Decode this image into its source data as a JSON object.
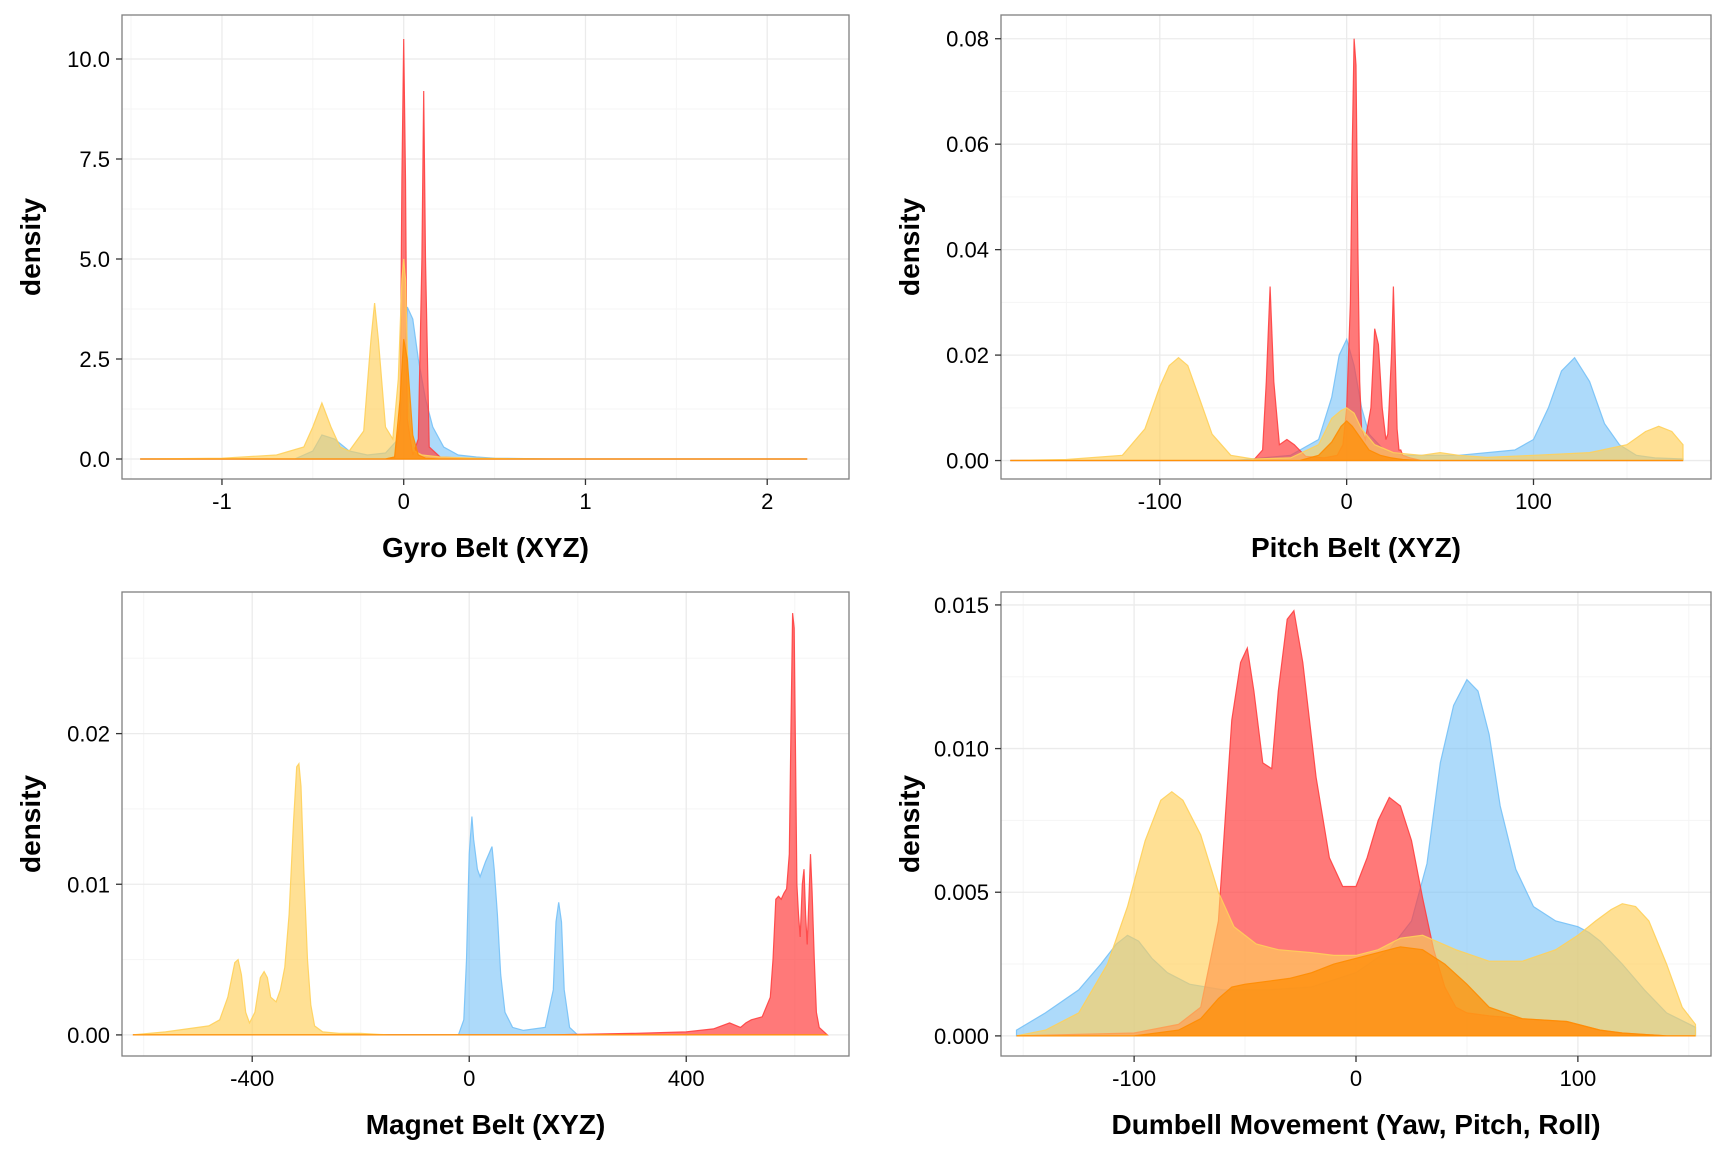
{
  "figure": {
    "colors": {
      "blue": "#76c1f7",
      "red": "#ff4040",
      "yellow": "#ffd05a",
      "orange": "#ff8c00",
      "grid": "#ebebeb",
      "border": "#7f7f7f"
    }
  },
  "chart_data": [
    {
      "type": "area",
      "xlabel": "Gyro Belt (XYZ)",
      "ylabel": "density",
      "xlim": [
        -1.55,
        2.45
      ],
      "ylim": [
        -0.5,
        11.1
      ],
      "xticks": [
        -1,
        0,
        1,
        2
      ],
      "xtick_labels": [
        "-1",
        "0",
        "1",
        "2"
      ],
      "yticks": [
        0,
        2.5,
        5,
        7.5,
        10
      ],
      "ytick_labels": [
        "0.0",
        "2.5",
        "5.0",
        "7.5",
        "10.0"
      ],
      "grid": true,
      "series": [
        {
          "color": "#76c1f7",
          "x": [
            -1.45,
            -0.6,
            -0.5,
            -0.45,
            -0.38,
            -0.3,
            -0.2,
            -0.1,
            -0.03,
            0.0,
            0.02,
            0.05,
            0.08,
            0.12,
            0.16,
            0.22,
            0.3,
            0.4,
            0.5,
            0.8,
            2.22
          ],
          "y": [
            0,
            0,
            0.2,
            0.6,
            0.5,
            0.2,
            0.1,
            0.15,
            0.5,
            2.0,
            3.8,
            3.5,
            2.5,
            1.5,
            0.8,
            0.3,
            0.1,
            0.05,
            0.02,
            0,
            0
          ]
        },
        {
          "color": "#ff4040",
          "x": [
            -1.45,
            -0.1,
            -0.05,
            -0.02,
            -0.01,
            0.0,
            0.01,
            0.02,
            0.05,
            0.08,
            0.1,
            0.11,
            0.12,
            0.14,
            0.2,
            0.4,
            2.22
          ],
          "y": [
            0,
            0,
            0.05,
            1.0,
            7.0,
            10.5,
            7.0,
            1.0,
            0.1,
            0.5,
            5.0,
            9.2,
            5.0,
            0.3,
            0.05,
            0,
            0
          ]
        },
        {
          "color": "#ffd05a",
          "x": [
            -1.45,
            -1.0,
            -0.7,
            -0.55,
            -0.5,
            -0.45,
            -0.4,
            -0.35,
            -0.3,
            -0.22,
            -0.18,
            -0.16,
            -0.14,
            -0.1,
            -0.06,
            -0.03,
            -0.01,
            0.0,
            0.01,
            0.03,
            0.06,
            0.1,
            0.2,
            0.4,
            0.8,
            2.22
          ],
          "y": [
            0,
            0.02,
            0.1,
            0.3,
            0.8,
            1.4,
            0.8,
            0.3,
            0.2,
            0.7,
            3.0,
            3.9,
            3.0,
            0.8,
            0.5,
            2.0,
            4.5,
            5.0,
            4.5,
            1.0,
            0.2,
            0.1,
            0.05,
            0.02,
            0,
            0
          ]
        },
        {
          "color": "#ff8c00",
          "x": [
            -1.45,
            -0.1,
            -0.05,
            -0.02,
            0.0,
            0.02,
            0.05,
            0.08,
            0.12,
            0.2,
            2.22
          ],
          "y": [
            0,
            0,
            0.05,
            1.5,
            3.0,
            2.5,
            0.6,
            0.1,
            0.02,
            0,
            0
          ]
        }
      ]
    },
    {
      "type": "area",
      "xlabel": "Pitch Belt (XYZ)",
      "ylabel": "density",
      "xlim": [
        -185,
        195
      ],
      "ylim": [
        -0.0035,
        0.0845
      ],
      "xticks": [
        -100,
        0,
        100
      ],
      "xtick_labels": [
        "-100",
        "0",
        "100"
      ],
      "yticks": [
        0,
        0.02,
        0.04,
        0.06,
        0.08
      ],
      "ytick_labels": [
        "0.00",
        "0.02",
        "0.04",
        "0.06",
        "0.08"
      ],
      "grid": true,
      "series": [
        {
          "color": "#76c1f7",
          "x": [
            -180,
            -60,
            -30,
            -15,
            -8,
            -4,
            0,
            4,
            8,
            12,
            20,
            30,
            60,
            90,
            100,
            108,
            115,
            122,
            130,
            138,
            146,
            155,
            165,
            180
          ],
          "y": [
            0,
            0,
            0.001,
            0.004,
            0.012,
            0.02,
            0.023,
            0.018,
            0.01,
            0.005,
            0.002,
            0.001,
            0.001,
            0.002,
            0.004,
            0.01,
            0.017,
            0.0195,
            0.015,
            0.007,
            0.003,
            0.001,
            0.0005,
            0.0003
          ]
        },
        {
          "color": "#ff4040",
          "x": [
            -180,
            -50,
            -45,
            -43,
            -41,
            -39,
            -36,
            -32,
            -28,
            -22,
            -12,
            -5,
            -2,
            0,
            2,
            3,
            4,
            5,
            6,
            7,
            8,
            10,
            13,
            15,
            17,
            19,
            21,
            22,
            24,
            25,
            26,
            27,
            28,
            29,
            30,
            34,
            40,
            180
          ],
          "y": [
            0,
            0,
            0.002,
            0.015,
            0.033,
            0.015,
            0.003,
            0.004,
            0.003,
            0.0008,
            0.0005,
            0.001,
            0.003,
            0.01,
            0.03,
            0.06,
            0.08,
            0.075,
            0.04,
            0.015,
            0.006,
            0.004,
            0.01,
            0.025,
            0.022,
            0.01,
            0.004,
            0.005,
            0.02,
            0.033,
            0.02,
            0.006,
            0.002,
            0.002,
            0.001,
            0.0005,
            0,
            0
          ]
        },
        {
          "color": "#ffd05a",
          "x": [
            -180,
            -150,
            -120,
            -108,
            -100,
            -95,
            -90,
            -85,
            -80,
            -72,
            -62,
            -50,
            -30,
            -15,
            -8,
            -3,
            0,
            4,
            8,
            15,
            25,
            40,
            50,
            60,
            75,
            100,
            130,
            150,
            160,
            167,
            174,
            180
          ],
          "y": [
            0,
            0.0002,
            0.001,
            0.006,
            0.014,
            0.018,
            0.0195,
            0.018,
            0.013,
            0.005,
            0.001,
            0.0003,
            0.0005,
            0.003,
            0.008,
            0.0095,
            0.01,
            0.009,
            0.006,
            0.003,
            0.0015,
            0.001,
            0.0015,
            0.001,
            0.0006,
            0.001,
            0.0015,
            0.003,
            0.0055,
            0.0065,
            0.0055,
            0.003
          ]
        },
        {
          "color": "#ff8c00",
          "x": [
            -180,
            -25,
            -15,
            -8,
            -3,
            0,
            3,
            8,
            12,
            18,
            24,
            30,
            40,
            180
          ],
          "y": [
            0,
            0,
            0.001,
            0.0035,
            0.0065,
            0.0075,
            0.0065,
            0.004,
            0.002,
            0.001,
            0.0005,
            0.0002,
            0,
            0
          ]
        }
      ]
    },
    {
      "type": "area",
      "xlabel": "Magnet Belt (XYZ)",
      "ylabel": "density",
      "xlim": [
        -640,
        700
      ],
      "ylim": [
        -0.0014,
        0.0294
      ],
      "xticks": [
        -400,
        0,
        400
      ],
      "xtick_labels": [
        "-400",
        "0",
        "400"
      ],
      "yticks": [
        0,
        0.01,
        0.02
      ],
      "ytick_labels": [
        "0.00",
        "0.01",
        "0.02"
      ],
      "grid": true,
      "series": [
        {
          "color": "#76c1f7",
          "x": [
            -620,
            -20,
            -10,
            -5,
            0,
            5,
            8,
            15,
            20,
            25,
            30,
            36,
            42,
            46,
            52,
            58,
            66,
            80,
            100,
            140,
            155,
            160,
            165,
            170,
            175,
            185,
            200,
            660
          ],
          "y": [
            0,
            0,
            0.001,
            0.005,
            0.012,
            0.0145,
            0.013,
            0.011,
            0.0105,
            0.011,
            0.0115,
            0.012,
            0.0125,
            0.011,
            0.008,
            0.004,
            0.0015,
            0.0005,
            0.0003,
            0.0005,
            0.003,
            0.0075,
            0.0088,
            0.0075,
            0.003,
            0.0005,
            0,
            0
          ]
        },
        {
          "color": "#ff4040",
          "x": [
            -620,
            150,
            300,
            400,
            450,
            480,
            500,
            510,
            520,
            540,
            555,
            560,
            565,
            570,
            575,
            580,
            585,
            590,
            593,
            596,
            599,
            601,
            604,
            607,
            610,
            614,
            617,
            620,
            623,
            626,
            629,
            632,
            636,
            640,
            645,
            660
          ],
          "y": [
            0,
            0,
            0.0001,
            0.0002,
            0.0004,
            0.0008,
            0.0005,
            0.0008,
            0.001,
            0.0012,
            0.0025,
            0.005,
            0.009,
            0.0092,
            0.009,
            0.0094,
            0.0097,
            0.012,
            0.02,
            0.028,
            0.027,
            0.02,
            0.01,
            0.008,
            0.0065,
            0.01,
            0.011,
            0.008,
            0.006,
            0.009,
            0.012,
            0.0095,
            0.005,
            0.0015,
            0.0005,
            0
          ]
        },
        {
          "color": "#ffd05a",
          "x": [
            -620,
            -560,
            -520,
            -480,
            -460,
            -445,
            -432,
            -426,
            -420,
            -412,
            -405,
            -395,
            -385,
            -378,
            -372,
            -366,
            -356,
            -348,
            -340,
            -332,
            -324,
            -318,
            -314,
            -310,
            -305,
            -298,
            -292,
            -285,
            -270,
            -240,
            -200,
            -150,
            -100,
            -50,
            0,
            660
          ],
          "y": [
            0,
            0.0002,
            0.0004,
            0.0006,
            0.001,
            0.0025,
            0.0048,
            0.005,
            0.004,
            0.0015,
            0.0008,
            0.0015,
            0.0038,
            0.0042,
            0.0038,
            0.0025,
            0.0022,
            0.003,
            0.0045,
            0.008,
            0.014,
            0.0178,
            0.018,
            0.0165,
            0.011,
            0.005,
            0.002,
            0.0006,
            0.0002,
            0.0001,
            0.0001,
            0,
            0,
            0,
            0,
            0
          ]
        },
        {
          "color": "#ff8c00",
          "x": [
            -620,
            660
          ],
          "y": [
            0,
            0
          ]
        }
      ]
    },
    {
      "type": "area",
      "xlabel": "Dumbell Movement (Yaw, Pitch, Roll)",
      "ylabel": "density",
      "xlim": [
        -160,
        160
      ],
      "ylim": [
        -0.0007,
        0.01545
      ],
      "xticks": [
        -100,
        0,
        100
      ],
      "xtick_labels": [
        "-100",
        "0",
        "100"
      ],
      "yticks": [
        0,
        0.005,
        0.01,
        0.015
      ],
      "ytick_labels": [
        "0.000",
        "0.005",
        "0.010",
        "0.015"
      ],
      "grid": true,
      "series": [
        {
          "color": "#76c1f7",
          "x": [
            -153,
            -140,
            -125,
            -115,
            -108,
            -103,
            -98,
            -92,
            -85,
            -75,
            -60,
            -40,
            -20,
            0,
            15,
            25,
            32,
            38,
            44,
            50,
            55,
            60,
            65,
            72,
            80,
            90,
            100,
            105,
            110,
            120,
            130,
            140,
            153
          ],
          "y": [
            0.0002,
            0.0008,
            0.0016,
            0.0025,
            0.0032,
            0.0035,
            0.0033,
            0.0027,
            0.0022,
            0.0018,
            0.0016,
            0.0016,
            0.0017,
            0.0022,
            0.003,
            0.004,
            0.006,
            0.0095,
            0.0115,
            0.0124,
            0.012,
            0.0105,
            0.008,
            0.0058,
            0.0045,
            0.004,
            0.0038,
            0.0036,
            0.0033,
            0.0025,
            0.0016,
            0.0008,
            0.0003
          ]
        },
        {
          "color": "#ff4040",
          "x": [
            -153,
            -100,
            -80,
            -70,
            -62,
            -56,
            -52,
            -49,
            -46,
            -42,
            -38,
            -35,
            -31,
            -28,
            -24,
            -18,
            -12,
            -6,
            0,
            5,
            10,
            15,
            20,
            25,
            30,
            35,
            40,
            45,
            50,
            60,
            75,
            95,
            110,
            120,
            140,
            153
          ],
          "y": [
            0,
            0.0001,
            0.0004,
            0.001,
            0.004,
            0.011,
            0.013,
            0.0135,
            0.012,
            0.0095,
            0.0093,
            0.012,
            0.0145,
            0.0148,
            0.013,
            0.009,
            0.0062,
            0.0052,
            0.0052,
            0.0062,
            0.0075,
            0.0083,
            0.008,
            0.0068,
            0.0048,
            0.003,
            0.0017,
            0.001,
            0.0008,
            0.0007,
            0.0006,
            0.0005,
            0.0002,
            0.0001,
            0,
            0
          ]
        },
        {
          "color": "#ffd05a",
          "x": [
            -153,
            -140,
            -125,
            -112,
            -103,
            -95,
            -88,
            -83,
            -78,
            -70,
            -62,
            -55,
            -45,
            -35,
            -20,
            -10,
            0,
            10,
            20,
            30,
            45,
            60,
            75,
            90,
            100,
            108,
            115,
            120,
            126,
            132,
            140,
            147,
            153
          ],
          "y": [
            0,
            0.0002,
            0.0008,
            0.0025,
            0.0045,
            0.0068,
            0.0082,
            0.0085,
            0.0082,
            0.007,
            0.005,
            0.0038,
            0.0032,
            0.003,
            0.0029,
            0.0028,
            0.0028,
            0.003,
            0.0034,
            0.0035,
            0.003,
            0.0026,
            0.0026,
            0.003,
            0.0035,
            0.004,
            0.0044,
            0.0046,
            0.0045,
            0.004,
            0.0025,
            0.001,
            0.0004
          ]
        },
        {
          "color": "#ff8c00",
          "x": [
            -153,
            -100,
            -80,
            -70,
            -62,
            -56,
            -50,
            -40,
            -30,
            -20,
            -10,
            0,
            10,
            20,
            30,
            40,
            50,
            60,
            75,
            95,
            110,
            120,
            140,
            153
          ],
          "y": [
            0,
            0,
            0.0002,
            0.0006,
            0.0013,
            0.0017,
            0.0018,
            0.0019,
            0.002,
            0.0022,
            0.0025,
            0.0027,
            0.0029,
            0.0031,
            0.003,
            0.0025,
            0.0018,
            0.001,
            0.0006,
            0.0005,
            0.0002,
            0.0001,
            0,
            0
          ]
        }
      ]
    }
  ]
}
